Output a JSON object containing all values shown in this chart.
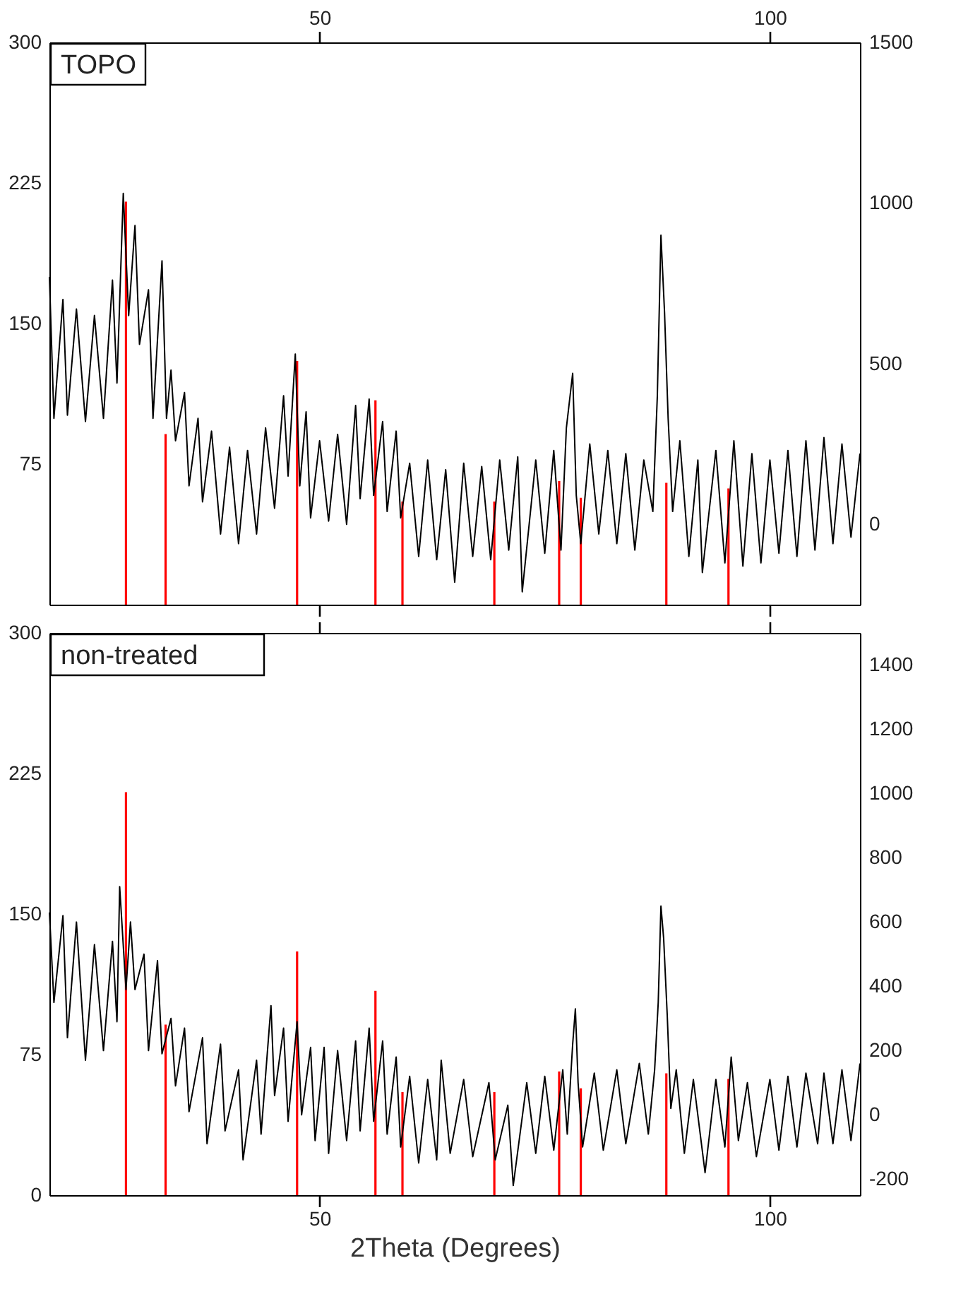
{
  "chart_data": [
    {
      "type": "line",
      "title": "TOPO",
      "xlim": [
        20,
        110
      ],
      "xticks": [
        50,
        100
      ],
      "ylim": [
        0,
        300
      ],
      "yticks": [
        75,
        150,
        225,
        300
      ],
      "y2lim": [
        -250,
        1500
      ],
      "y2ticks": [
        0,
        500,
        1000,
        1500
      ],
      "series": [
        {
          "axis": "y2",
          "color": "#000000",
          "x": [
            20,
            20.5,
            21.5,
            22,
            23,
            24,
            25,
            26,
            27,
            27.5,
            28.2,
            28.8,
            29.5,
            30,
            31,
            31.5,
            32.5,
            33,
            33.5,
            34,
            35,
            35.5,
            36.5,
            37,
            38,
            39,
            40,
            41,
            42,
            43,
            44,
            45,
            46,
            46.5,
            47.3,
            47.8,
            48.5,
            49,
            50,
            51,
            52,
            53,
            54,
            54.5,
            55.5,
            56,
            57,
            57.5,
            58.5,
            59,
            60,
            61,
            62,
            63,
            64,
            65,
            66,
            67,
            68,
            69,
            70,
            71,
            72,
            72.5,
            74,
            75,
            76,
            76.8,
            77.4,
            78.1,
            78.5,
            79,
            80,
            81,
            82,
            83,
            84,
            85,
            86,
            87,
            87.5,
            87.9,
            88.3,
            88.7,
            89.2,
            90,
            91,
            92,
            92.5,
            94,
            95,
            96,
            97,
            98,
            99,
            100,
            101,
            102,
            103,
            104,
            105,
            106,
            107,
            108,
            109,
            110
          ],
          "values": [
            770,
            330,
            700,
            340,
            670,
            320,
            650,
            330,
            760,
            440,
            1030,
            650,
            930,
            560,
            730,
            330,
            820,
            330,
            480,
            260,
            410,
            120,
            330,
            70,
            290,
            -30,
            240,
            -60,
            230,
            -30,
            300,
            50,
            400,
            150,
            530,
            120,
            350,
            20,
            260,
            10,
            280,
            0,
            370,
            80,
            390,
            90,
            320,
            40,
            290,
            20,
            190,
            -100,
            200,
            -110,
            170,
            -180,
            190,
            -100,
            180,
            -110,
            200,
            -80,
            210,
            -210,
            200,
            -90,
            230,
            -80,
            300,
            470,
            90,
            -60,
            250,
            -30,
            230,
            -60,
            220,
            -80,
            200,
            40,
            400,
            900,
            660,
            330,
            40,
            260,
            -100,
            200,
            -150,
            230,
            -120,
            260,
            -130,
            220,
            -120,
            200,
            -90,
            230,
            -100,
            260,
            -80,
            270,
            -60,
            250,
            -40,
            220
          ]
        },
        {
          "type": "bar",
          "axis": "y",
          "color": "#ff0000",
          "x": [
            28.5,
            32.9,
            47.5,
            56.2,
            59.2,
            69.4,
            76.6,
            79.0,
            88.5,
            95.4
          ],
          "values": [
            215,
            91,
            130,
            109,
            55,
            55,
            66,
            57,
            65,
            62
          ]
        }
      ]
    },
    {
      "type": "line",
      "title": "non-treated",
      "xlabel": "2Theta (Degrees)",
      "xlim": [
        20,
        110
      ],
      "xticks": [
        50,
        100
      ],
      "ylim": [
        0,
        300
      ],
      "yticks": [
        0,
        75,
        150,
        225,
        300
      ],
      "y2lim": [
        -250,
        1500
      ],
      "y2ticks": [
        -200,
        0,
        200,
        400,
        600,
        800,
        1000,
        1200,
        1400
      ],
      "series": [
        {
          "axis": "y2",
          "color": "#000000",
          "x": [
            20,
            20.5,
            21.5,
            22,
            23,
            24,
            25,
            26,
            27,
            27.5,
            27.8,
            28.5,
            29,
            29.5,
            30.5,
            31,
            32,
            32.5,
            33.5,
            34,
            35,
            35.5,
            37,
            37.5,
            39,
            39.5,
            41,
            41.5,
            43,
            43.5,
            44.6,
            45,
            46,
            46.5,
            47.5,
            48,
            49,
            49.5,
            50.5,
            51,
            52,
            53,
            54,
            54.5,
            55.5,
            56,
            57,
            57.5,
            58.5,
            59,
            60,
            61,
            62,
            63,
            63.5,
            64.5,
            66,
            67,
            68.8,
            69.5,
            70.9,
            71.5,
            73,
            74,
            75,
            76,
            77,
            77.5,
            78.1,
            78.4,
            78.7,
            79.2,
            80.5,
            81.5,
            83,
            84,
            85.5,
            86.5,
            87.2,
            87.6,
            87.9,
            88.2,
            88.6,
            89,
            89.6,
            90.5,
            91.5,
            92.8,
            94,
            95,
            95.7,
            96.5,
            97.5,
            98.5,
            100,
            101,
            102,
            103,
            104,
            105.3,
            106,
            107,
            108,
            109,
            110
          ],
          "values": [
            630,
            350,
            620,
            240,
            600,
            170,
            530,
            200,
            540,
            290,
            710,
            390,
            600,
            390,
            500,
            200,
            480,
            190,
            300,
            90,
            270,
            10,
            240,
            -90,
            220,
            -50,
            140,
            -140,
            170,
            -60,
            340,
            60,
            270,
            -20,
            290,
            0,
            210,
            -80,
            210,
            -120,
            200,
            -80,
            230,
            -50,
            270,
            -20,
            230,
            -60,
            180,
            -100,
            120,
            -150,
            110,
            -140,
            170,
            -120,
            110,
            -130,
            100,
            -140,
            30,
            -220,
            100,
            -120,
            120,
            -110,
            140,
            -60,
            220,
            330,
            100,
            -100,
            130,
            -110,
            140,
            -90,
            160,
            -60,
            140,
            350,
            650,
            550,
            310,
            20,
            140,
            -120,
            110,
            -180,
            110,
            -100,
            180,
            -80,
            100,
            -130,
            110,
            -110,
            120,
            -100,
            130,
            -90,
            130,
            -90,
            140,
            -80,
            160
          ]
        },
        {
          "type": "bar",
          "axis": "y",
          "color": "#ff0000",
          "x": [
            28.5,
            32.9,
            47.5,
            56.2,
            59.2,
            69.4,
            76.6,
            79.0,
            88.5,
            95.4
          ],
          "values": [
            215,
            91,
            130,
            109,
            55,
            55,
            66,
            57,
            65,
            62
          ]
        }
      ]
    }
  ]
}
